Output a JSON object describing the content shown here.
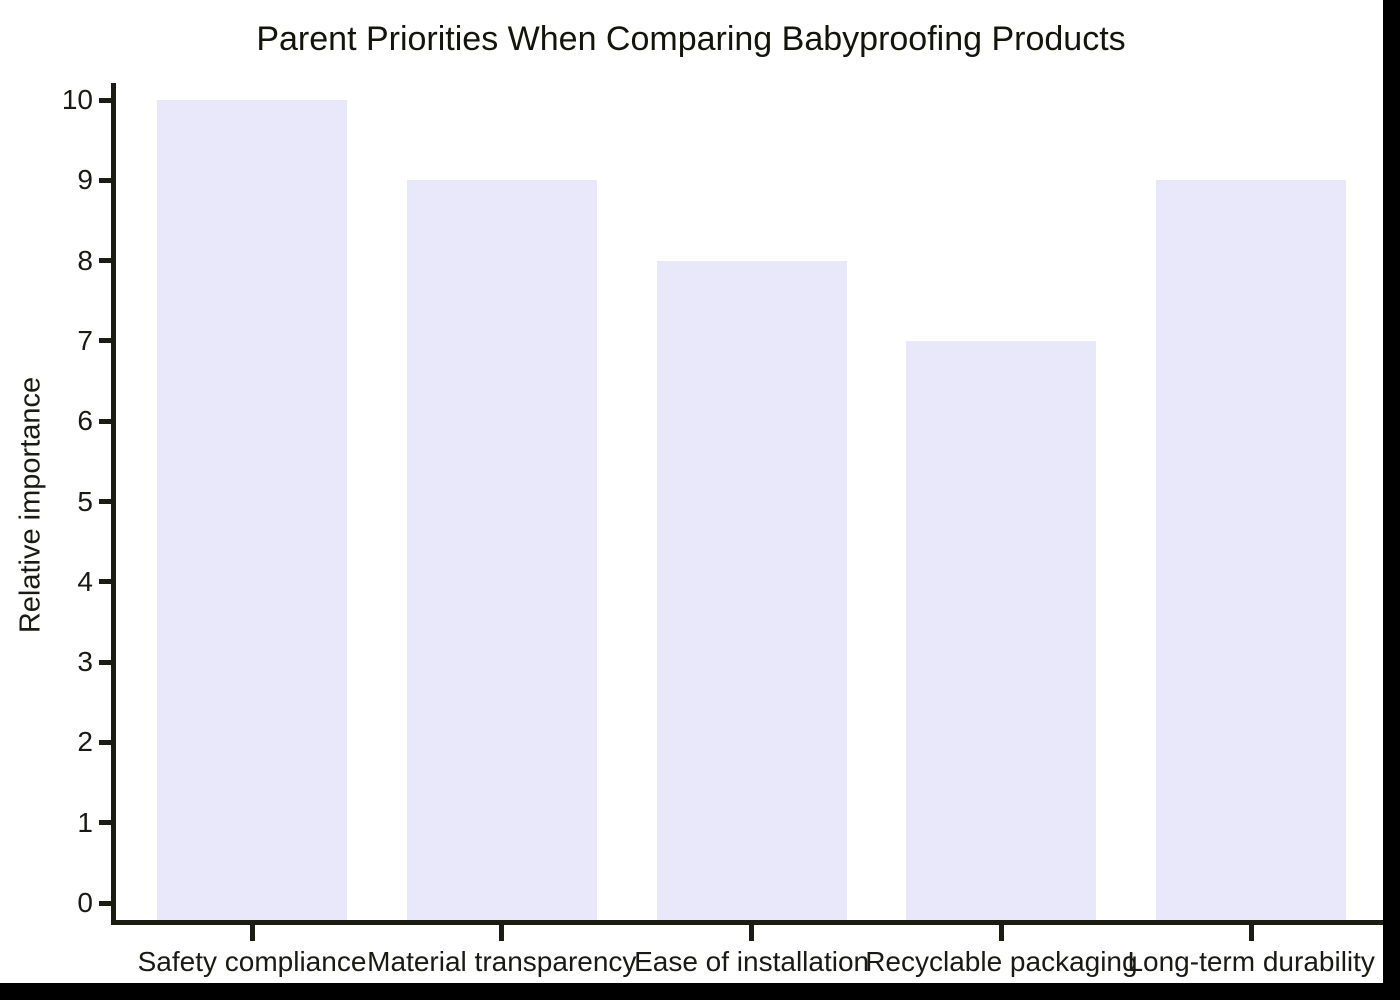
{
  "chart_data": {
    "type": "bar",
    "title": "Parent Priorities When Comparing Babyproofing Products",
    "xlabel": "",
    "ylabel": "Relative importance",
    "categories": [
      "Safety compliance",
      "Material transparency",
      "Ease of installation",
      "Recyclable packaging",
      "Long-term durability"
    ],
    "values": [
      10,
      9,
      8,
      7,
      9
    ],
    "ylim": [
      0,
      10
    ],
    "yticks": [
      0,
      1,
      2,
      3,
      4,
      5,
      6,
      7,
      8,
      9,
      10
    ],
    "grid": false,
    "legend": false,
    "colors": {
      "bar_fill": "#e9e8fa",
      "axis": "#1c1c12",
      "text": "#1a1a14",
      "title": "#14140c",
      "plot_background": "#ffffff",
      "frame": "#000000"
    }
  }
}
